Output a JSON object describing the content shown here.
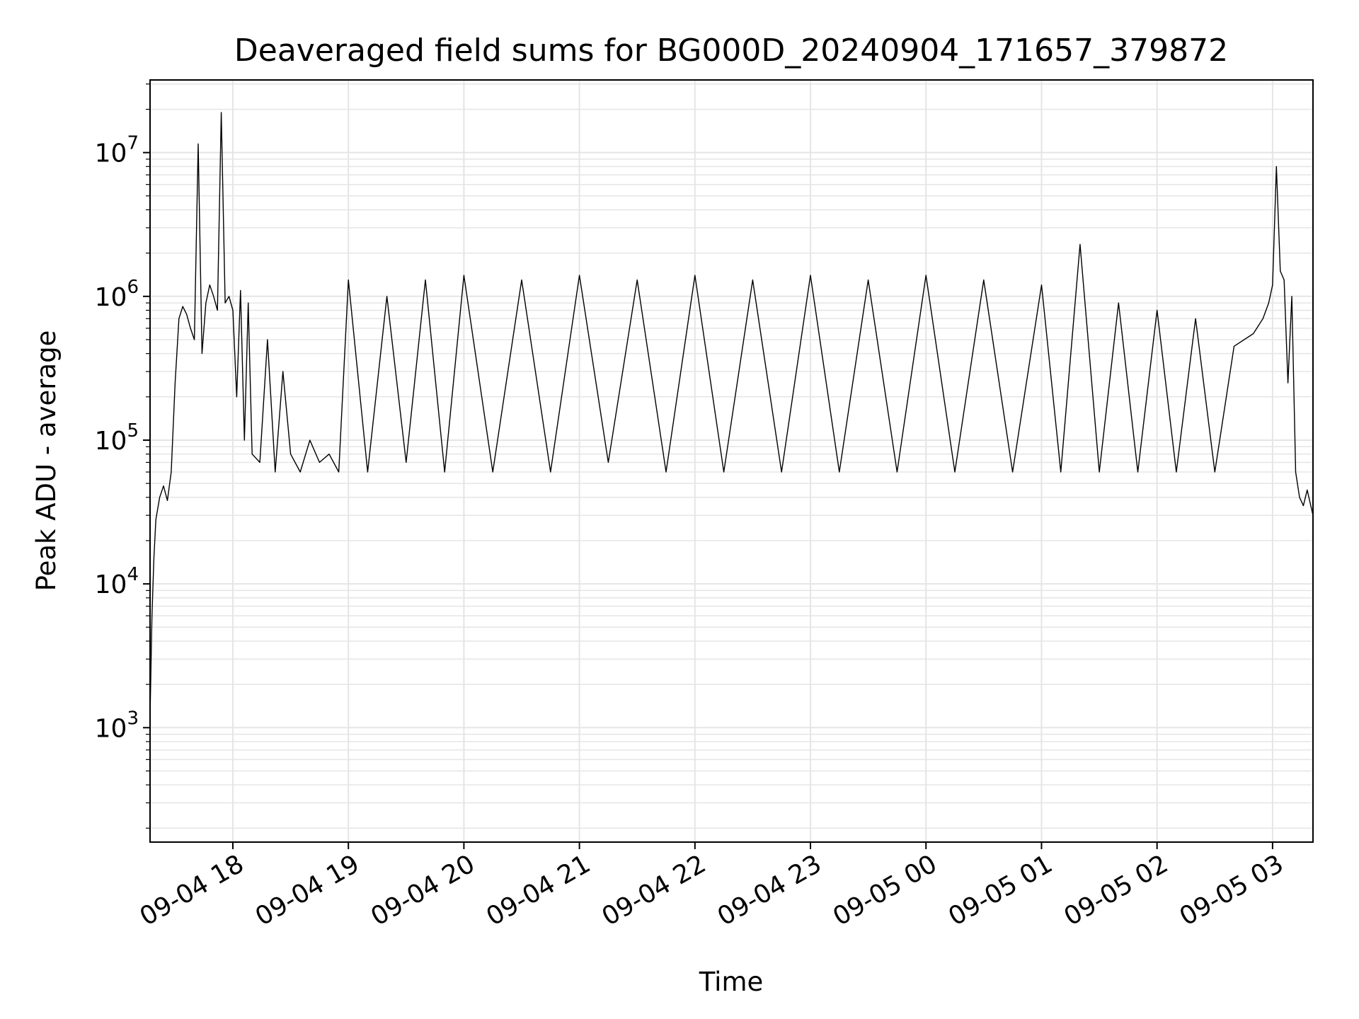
{
  "chart_data": {
    "type": "line",
    "title": "Deaveraged field sums for BG000D_20240904_171657_379872",
    "xlabel": "Time",
    "ylabel": "Peak ADU - average",
    "yscale": "log",
    "ylim": [
      160,
      32000000
    ],
    "xlim": [
      "2024-09-04 17:17",
      "2024-09-05 03:21"
    ],
    "grid": true,
    "line_color": "#000000",
    "grid_color": "#e5e5e5",
    "x_ticks": [
      {
        "value": "2024-09-04 18:00",
        "label": "09-04 18"
      },
      {
        "value": "2024-09-04 19:00",
        "label": "09-04 19"
      },
      {
        "value": "2024-09-04 20:00",
        "label": "09-04 20"
      },
      {
        "value": "2024-09-04 21:00",
        "label": "09-04 21"
      },
      {
        "value": "2024-09-04 22:00",
        "label": "09-04 22"
      },
      {
        "value": "2024-09-04 23:00",
        "label": "09-04 23"
      },
      {
        "value": "2024-09-05 00:00",
        "label": "09-05 00"
      },
      {
        "value": "2024-09-05 01:00",
        "label": "09-05 01"
      },
      {
        "value": "2024-09-05 02:00",
        "label": "09-05 02"
      },
      {
        "value": "2024-09-05 03:00",
        "label": "09-05 03"
      }
    ],
    "y_ticks": [
      {
        "value": 1000,
        "base": "10",
        "exp": "3"
      },
      {
        "value": 10000,
        "base": "10",
        "exp": "4"
      },
      {
        "value": 100000,
        "base": "10",
        "exp": "5"
      },
      {
        "value": 1000000,
        "base": "10",
        "exp": "6"
      },
      {
        "value": 10000000,
        "base": "10",
        "exp": "7"
      }
    ],
    "series": [
      {
        "x": [
          "2024-09-04 17:17",
          "2024-09-04 17:18",
          "2024-09-04 17:19",
          "2024-09-04 17:20",
          "2024-09-04 17:22",
          "2024-09-04 17:24",
          "2024-09-04 17:26",
          "2024-09-04 17:28",
          "2024-09-04 17:30",
          "2024-09-04 17:32",
          "2024-09-04 17:34",
          "2024-09-04 17:36",
          "2024-09-04 17:38",
          "2024-09-04 17:40",
          "2024-09-04 17:42",
          "2024-09-04 17:44",
          "2024-09-04 17:46",
          "2024-09-04 17:48",
          "2024-09-04 17:50",
          "2024-09-04 17:52",
          "2024-09-04 17:54",
          "2024-09-04 17:56",
          "2024-09-04 17:58",
          "2024-09-04 18:00",
          "2024-09-04 18:02",
          "2024-09-04 18:04",
          "2024-09-04 18:06",
          "2024-09-04 18:08",
          "2024-09-04 18:10",
          "2024-09-04 18:14",
          "2024-09-04 18:18",
          "2024-09-04 18:22",
          "2024-09-04 18:26",
          "2024-09-04 18:30",
          "2024-09-04 18:35",
          "2024-09-04 18:40",
          "2024-09-04 18:45",
          "2024-09-04 18:50",
          "2024-09-04 18:55",
          "2024-09-04 19:00",
          "2024-09-04 19:10",
          "2024-09-04 19:20",
          "2024-09-04 19:30",
          "2024-09-04 19:40",
          "2024-09-04 19:50",
          "2024-09-04 20:00",
          "2024-09-04 20:15",
          "2024-09-04 20:30",
          "2024-09-04 20:45",
          "2024-09-04 21:00",
          "2024-09-04 21:15",
          "2024-09-04 21:30",
          "2024-09-04 21:45",
          "2024-09-04 22:00",
          "2024-09-04 22:15",
          "2024-09-04 22:30",
          "2024-09-04 22:45",
          "2024-09-04 23:00",
          "2024-09-04 23:15",
          "2024-09-04 23:30",
          "2024-09-04 23:45",
          "2024-09-05 00:00",
          "2024-09-05 00:15",
          "2024-09-05 00:30",
          "2024-09-05 00:45",
          "2024-09-05 01:00",
          "2024-09-05 01:10",
          "2024-09-05 01:20",
          "2024-09-05 01:30",
          "2024-09-05 01:40",
          "2024-09-05 01:50",
          "2024-09-05 02:00",
          "2024-09-05 02:10",
          "2024-09-05 02:20",
          "2024-09-05 02:30",
          "2024-09-05 02:40",
          "2024-09-05 02:50",
          "2024-09-05 02:55",
          "2024-09-05 02:58",
          "2024-09-05 03:00",
          "2024-09-05 03:02",
          "2024-09-05 03:04",
          "2024-09-05 03:06",
          "2024-09-05 03:08",
          "2024-09-05 03:10",
          "2024-09-05 03:12",
          "2024-09-05 03:14",
          "2024-09-05 03:16",
          "2024-09-05 03:18",
          "2024-09-05 03:21"
        ],
        "y": [
          1200,
          6000,
          15000,
          28000,
          40000,
          48000,
          38000,
          60000,
          250000,
          700000,
          850000,
          750000,
          600000,
          500000,
          11500000,
          400000,
          900000,
          1200000,
          1000000,
          800000,
          19000000,
          900000,
          1000000,
          800000,
          200000,
          1100000,
          100000,
          900000,
          80000,
          70000,
          500000,
          60000,
          300000,
          80000,
          60000,
          100000,
          70000,
          80000,
          60000,
          1300000,
          60000,
          1000000,
          70000,
          1300000,
          60000,
          1400000,
          60000,
          1300000,
          60000,
          1400000,
          70000,
          1300000,
          60000,
          1400000,
          60000,
          1300000,
          60000,
          1400000,
          60000,
          1300000,
          60000,
          1400000,
          60000,
          1300000,
          60000,
          1200000,
          60000,
          2300000,
          60000,
          900000,
          60000,
          800000,
          60000,
          700000,
          60000,
          450000,
          550000,
          700000,
          900000,
          1200000,
          8000000,
          1500000,
          1300000,
          250000,
          1000000,
          60000,
          40000,
          35000,
          45000,
          30000
        ]
      }
    ]
  }
}
